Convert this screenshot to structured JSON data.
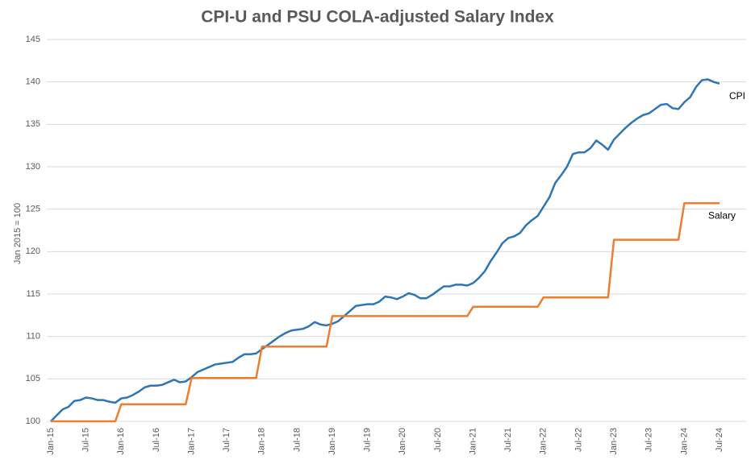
{
  "chart_data": {
    "type": "line",
    "title": "CPI-U and PSU COLA-adjusted Salary Index",
    "y_label": "Jan 2015 = 100",
    "categories": [
      "Jan-15",
      null,
      null,
      null,
      null,
      null,
      "Jul-15",
      null,
      null,
      null,
      null,
      null,
      "Jan-16",
      null,
      null,
      null,
      null,
      null,
      "Jul-16",
      null,
      null,
      null,
      null,
      null,
      "Jan-17",
      null,
      null,
      null,
      null,
      null,
      "Jul-17",
      null,
      null,
      null,
      null,
      null,
      "Jan-18",
      null,
      null,
      null,
      null,
      null,
      "Jul-18",
      null,
      null,
      null,
      null,
      null,
      "Jan-19",
      null,
      null,
      null,
      null,
      null,
      "Jul-19",
      null,
      null,
      null,
      null,
      null,
      "Jan-20",
      null,
      null,
      null,
      null,
      null,
      "Jul-20",
      null,
      null,
      null,
      null,
      null,
      "Jan-21",
      null,
      null,
      null,
      null,
      null,
      "Jul-21",
      null,
      null,
      null,
      null,
      null,
      "Jan-22",
      null,
      null,
      null,
      null,
      null,
      "Jul-22",
      null,
      null,
      null,
      null,
      null,
      "Jan-23",
      null,
      null,
      null,
      null,
      null,
      "Jul-23",
      null,
      null,
      null,
      null,
      null,
      "Jan-24",
      null,
      null,
      null,
      null,
      null,
      "Jul-24"
    ],
    "series": [
      {
        "name": "CPI",
        "color": "#2e75b6",
        "values": [
          100,
          100.7,
          101.4,
          101.7,
          102.4,
          102.5,
          102.8,
          102.7,
          102.5,
          102.5,
          102.3,
          102.2,
          102.7,
          102.8,
          103.1,
          103.5,
          104.0,
          104.2,
          104.2,
          104.3,
          104.6,
          104.9,
          104.6,
          104.7,
          105.2,
          105.8,
          106.1,
          106.4,
          106.7,
          106.8,
          106.9,
          107.0,
          107.5,
          107.9,
          107.9,
          108.0,
          108.5,
          109.0,
          109.5,
          110.0,
          110.4,
          110.7,
          110.8,
          110.9,
          111.2,
          111.7,
          111.4,
          111.3,
          111.5,
          111.8,
          112.4,
          113.0,
          113.6,
          113.7,
          113.8,
          113.8,
          114.1,
          114.7,
          114.6,
          114.4,
          114.7,
          115.1,
          114.9,
          114.5,
          114.5,
          114.9,
          115.4,
          115.9,
          115.9,
          116.1,
          116.1,
          116.0,
          116.3,
          116.9,
          117.7,
          118.9,
          119.9,
          121.0,
          121.6,
          121.8,
          122.2,
          123.1,
          123.7,
          124.2,
          125.3,
          126.4,
          128.1,
          129.0,
          130.0,
          131.5,
          131.7,
          131.7,
          132.2,
          133.1,
          132.6,
          132.0,
          133.2,
          133.9,
          134.6,
          135.2,
          135.7,
          136.1,
          136.3,
          136.8,
          137.3,
          137.4,
          136.9,
          136.8,
          137.6,
          138.2,
          139.4,
          140.2,
          140.3,
          140.0,
          139.8
        ]
      },
      {
        "name": "Salary",
        "color": "#ed7d31",
        "values": [
          100,
          100,
          100,
          100,
          100,
          100,
          100,
          100,
          100,
          100,
          100,
          100,
          102.0,
          102.0,
          102.0,
          102.0,
          102.0,
          102.0,
          102.0,
          102.0,
          102.0,
          102.0,
          102.0,
          102.0,
          105.1,
          105.1,
          105.1,
          105.1,
          105.1,
          105.1,
          105.1,
          105.1,
          105.1,
          105.1,
          105.1,
          105.1,
          108.8,
          108.8,
          108.8,
          108.8,
          108.8,
          108.8,
          108.8,
          108.8,
          108.8,
          108.8,
          108.8,
          108.8,
          112.4,
          112.4,
          112.4,
          112.4,
          112.4,
          112.4,
          112.4,
          112.4,
          112.4,
          112.4,
          112.4,
          112.4,
          112.4,
          112.4,
          112.4,
          112.4,
          112.4,
          112.4,
          112.4,
          112.4,
          112.4,
          112.4,
          112.4,
          112.4,
          113.5,
          113.5,
          113.5,
          113.5,
          113.5,
          113.5,
          113.5,
          113.5,
          113.5,
          113.5,
          113.5,
          113.5,
          114.6,
          114.6,
          114.6,
          114.6,
          114.6,
          114.6,
          114.6,
          114.6,
          114.6,
          114.6,
          114.6,
          114.6,
          121.4,
          121.4,
          121.4,
          121.4,
          121.4,
          121.4,
          121.4,
          121.4,
          121.4,
          121.4,
          121.4,
          121.4,
          125.7,
          125.7,
          125.7,
          125.7,
          125.7,
          125.7,
          125.7
        ]
      }
    ],
    "ylim": [
      100,
      145
    ],
    "yticks": [
      100,
      105,
      110,
      115,
      120,
      125,
      130,
      135,
      140,
      145
    ],
    "grid": true
  }
}
